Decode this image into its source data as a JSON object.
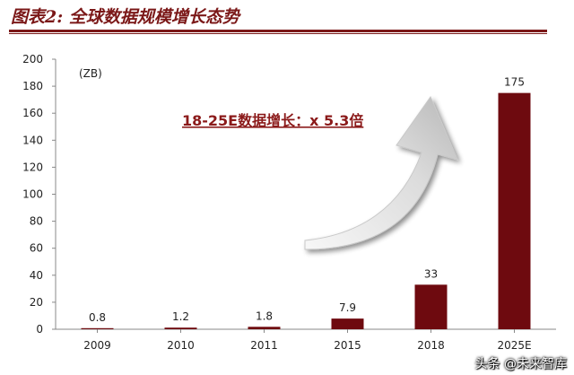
{
  "title": "图表2: 全球数据规模增长态势",
  "watermark": "头条 @未来智库",
  "colors": {
    "bar": "#6e0a0f",
    "title": "#7b1818",
    "annotation": "#8b1a1a"
  },
  "chart_data": {
    "type": "bar",
    "unit_label": "(ZB)",
    "categories": [
      "2009",
      "2010",
      "2011",
      "2015",
      "2018",
      "2025E"
    ],
    "values": [
      0.8,
      1.2,
      1.8,
      7.9,
      33,
      175
    ],
    "value_labels": [
      "0.8",
      "1.2",
      "1.8",
      "7.9",
      "33",
      "175"
    ],
    "ylim": [
      0,
      200
    ],
    "yticks": [
      0,
      20,
      40,
      60,
      80,
      100,
      120,
      140,
      160,
      180,
      200
    ],
    "annotation": "18-25E数据增长：x 5.3倍",
    "grid": false,
    "legend": "none"
  }
}
